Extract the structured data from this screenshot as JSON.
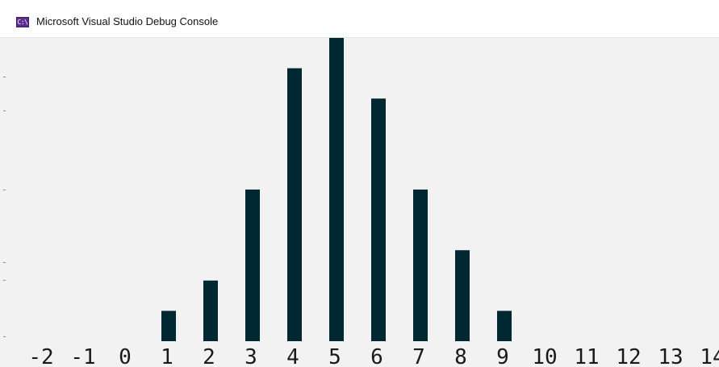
{
  "window": {
    "title": "Microsoft Visual Studio Debug Console",
    "icon": "console-app-icon",
    "icon_glyph": "C:\\"
  },
  "colors": {
    "bar": "#002833",
    "background": "#f2f2f2",
    "text": "#1a1a1a"
  },
  "chart_data": {
    "type": "bar",
    "categories": [
      "-2",
      "-1",
      "0",
      "1",
      "2",
      "3",
      "4",
      "5",
      "6",
      "7",
      "8",
      "9",
      "10",
      "11",
      "12",
      "13",
      "14"
    ],
    "values": [
      0,
      0,
      0,
      1,
      2,
      5,
      9,
      10,
      8,
      5,
      3,
      1,
      0,
      0,
      0,
      0,
      0
    ],
    "ylim": [
      0,
      10
    ],
    "title": "",
    "xlabel": "",
    "ylabel": ""
  }
}
